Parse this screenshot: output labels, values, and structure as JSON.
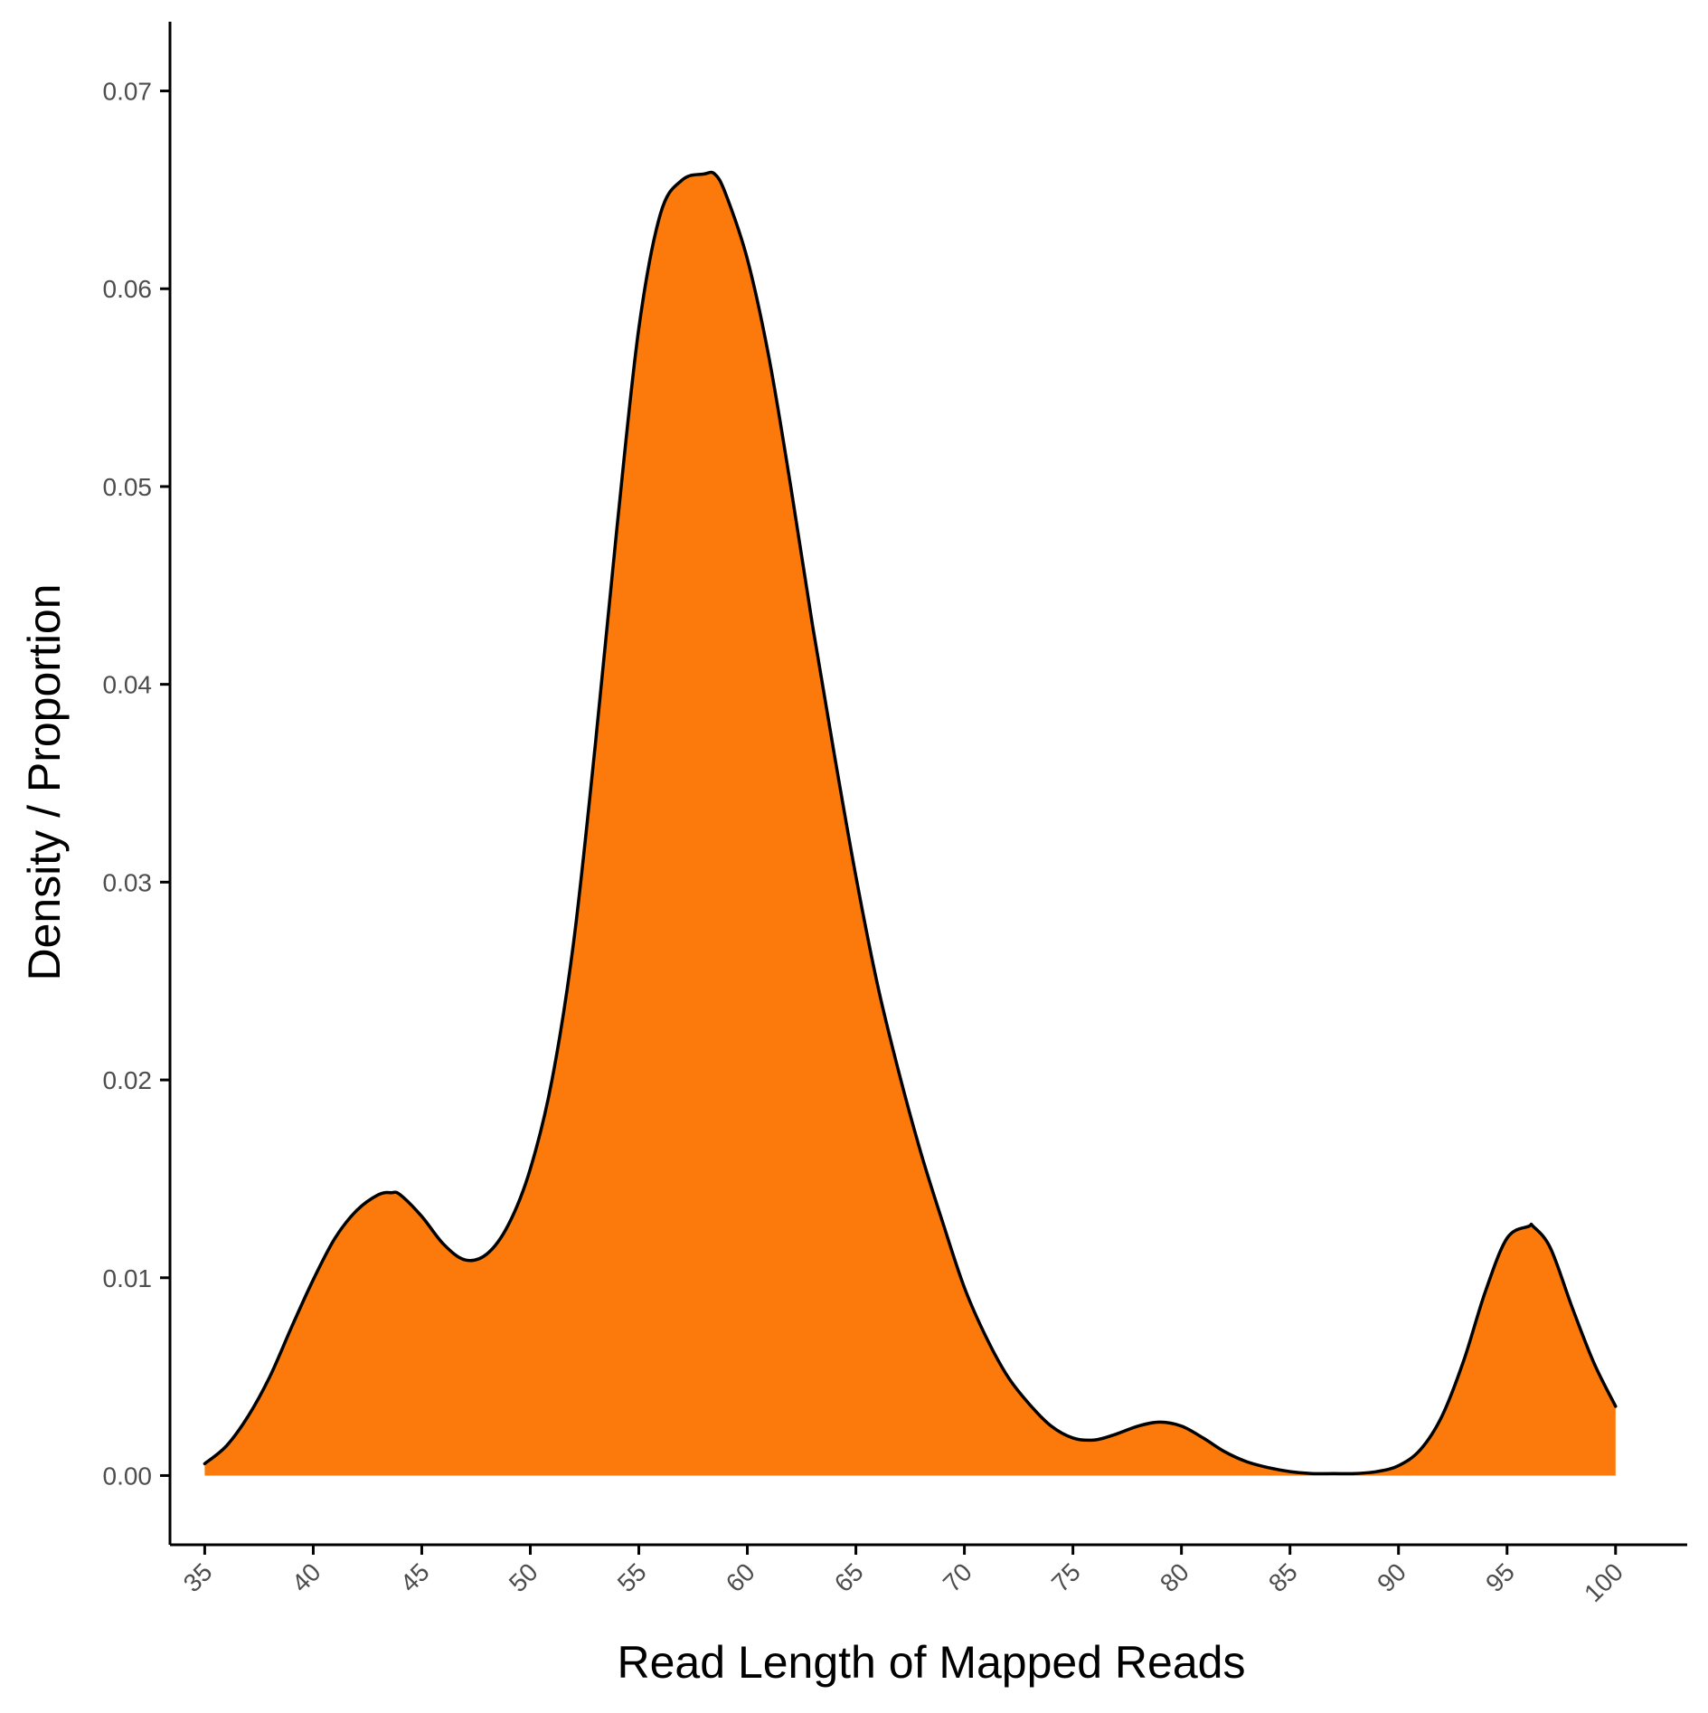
{
  "colors": {
    "fill": "#FB7A0B",
    "outline": "#000000",
    "axis": "#000000",
    "tick_text": "#4d4d4d",
    "background": "#ffffff"
  },
  "chart_data": {
    "type": "area",
    "title": "",
    "xlabel": "Read Length of Mapped Reads",
    "ylabel": "Density / Proportion",
    "xlim": [
      33.4,
      103.3
    ],
    "ylim": [
      -0.0035,
      0.0735
    ],
    "x_ticks": [
      35,
      40,
      45,
      50,
      55,
      60,
      65,
      70,
      75,
      80,
      85,
      90,
      95,
      100
    ],
    "x_tick_labels": [
      "35",
      "40",
      "45",
      "50",
      "55",
      "60",
      "65",
      "70",
      "75",
      "80",
      "85",
      "90",
      "95",
      "100"
    ],
    "y_ticks": [
      0.0,
      0.01,
      0.02,
      0.03,
      0.04,
      0.05,
      0.06,
      0.07
    ],
    "y_tick_labels": [
      "0.00",
      "0.01",
      "0.02",
      "0.03",
      "0.04",
      "0.05",
      "0.06",
      "0.07"
    ],
    "grid": false,
    "legend": "none",
    "x": [
      35,
      36,
      37,
      38,
      39,
      40,
      41,
      42,
      43,
      43.6,
      44,
      45,
      46,
      47,
      48,
      49,
      50,
      51,
      52,
      53,
      54,
      55,
      56,
      57,
      58,
      58.5,
      59,
      60,
      61,
      62,
      63,
      64,
      65,
      66,
      67,
      68,
      69,
      70,
      71,
      72,
      73,
      74,
      75,
      76,
      77,
      78,
      79,
      80,
      81,
      82,
      83,
      84,
      85,
      86,
      87,
      88,
      89,
      90,
      91,
      92,
      93,
      94,
      95,
      96,
      96.2,
      97,
      98,
      99,
      100
    ],
    "y": [
      0.0006,
      0.0015,
      0.003,
      0.005,
      0.0075,
      0.0099,
      0.012,
      0.0134,
      0.0142,
      0.0143,
      0.0142,
      0.0131,
      0.0117,
      0.0109,
      0.0112,
      0.0127,
      0.0155,
      0.02,
      0.027,
      0.037,
      0.048,
      0.058,
      0.0638,
      0.0655,
      0.0658,
      0.0658,
      0.0648,
      0.0615,
      0.0565,
      0.05,
      0.043,
      0.0365,
      0.0303,
      0.0248,
      0.0203,
      0.0163,
      0.0128,
      0.0095,
      0.007,
      0.005,
      0.0036,
      0.0025,
      0.0019,
      0.0018,
      0.0021,
      0.0025,
      0.0027,
      0.0025,
      0.0019,
      0.0012,
      0.0007,
      0.0004,
      0.0002,
      0.0001,
      0.0001,
      0.0001,
      0.0002,
      0.0005,
      0.0013,
      0.003,
      0.0058,
      0.0093,
      0.012,
      0.0126,
      0.0126,
      0.0115,
      0.0085,
      0.0057,
      0.0035
    ]
  }
}
